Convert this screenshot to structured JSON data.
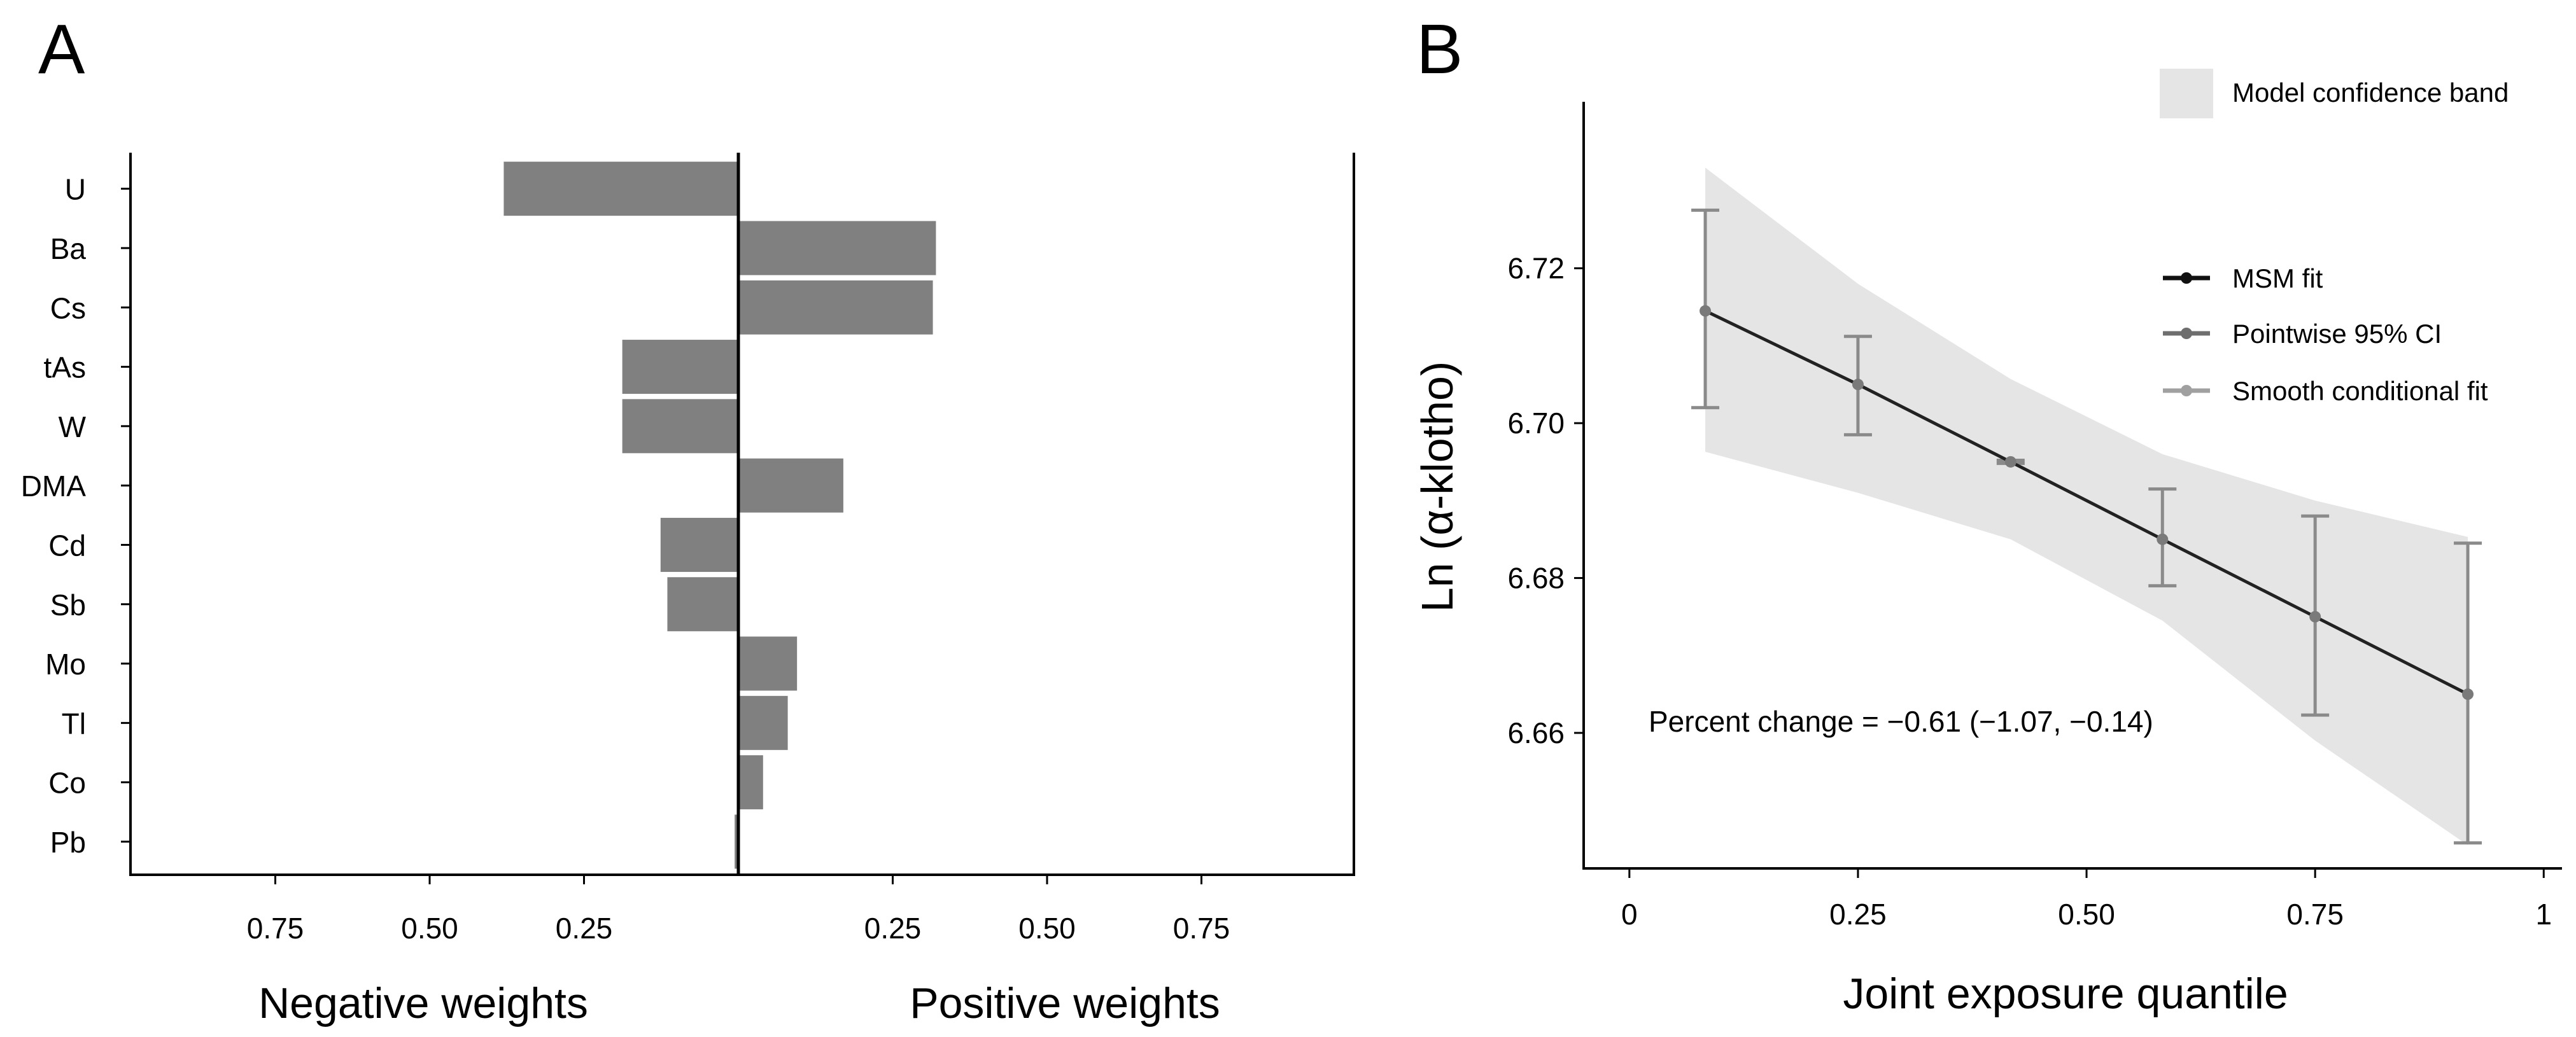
{
  "chart_data": [
    {
      "panel": "A",
      "type": "bar",
      "orientation": "horizontal",
      "panel_label": "A",
      "categories": [
        "U",
        "Ba",
        "Cs",
        "tAs",
        "W",
        "DMA",
        "Cd",
        "Sb",
        "Mo",
        "Tl",
        "Co",
        "Pb"
      ],
      "values": [
        -0.38,
        0.32,
        0.315,
        -0.188,
        -0.188,
        0.17,
        -0.126,
        -0.115,
        0.095,
        0.08,
        0.04,
        -0.006
      ],
      "xlim": [
        -1.0,
        1.0
      ],
      "xticks": [
        -0.75,
        -0.5,
        -0.25,
        0.25,
        0.5,
        0.75
      ],
      "xtick_labels": [
        "0.75",
        "0.50",
        "0.25",
        "0.25",
        "0.50",
        "0.75"
      ],
      "xlabel_negative": "Negative weights",
      "xlabel_positive": "Positive weights",
      "bar_color": "#808080"
    },
    {
      "panel": "B",
      "type": "line",
      "panel_label": "B",
      "x": [
        0.083,
        0.25,
        0.417,
        0.583,
        0.75,
        0.917
      ],
      "y": [
        6.7145,
        6.705,
        6.695,
        6.685,
        6.675,
        6.665
      ],
      "ci_lower": [
        6.702,
        6.6985,
        6.6948,
        6.679,
        6.6623,
        6.6458
      ],
      "ci_upper": [
        6.7275,
        6.7112,
        6.6952,
        6.6915,
        6.688,
        6.6845
      ],
      "band_x": [
        0.083,
        0.25,
        0.417,
        0.583,
        0.75,
        0.917
      ],
      "band_lower": [
        6.6963,
        6.691,
        6.685,
        6.6745,
        6.659,
        6.6455
      ],
      "band_upper": [
        6.733,
        6.718,
        6.7057,
        6.696,
        6.69,
        6.6853
      ],
      "xlim": [
        -0.05,
        1.02
      ],
      "ylim": [
        6.6425,
        6.7415
      ],
      "xticks": [
        0,
        0.25,
        0.5,
        0.75,
        1
      ],
      "xtick_labels": [
        "0",
        "0.25",
        "0.50",
        "0.75",
        "1"
      ],
      "yticks": [
        6.66,
        6.68,
        6.7,
        6.72
      ],
      "ytick_labels": [
        "6.66",
        "6.68",
        "6.70",
        "6.72"
      ],
      "xlabel": "Joint exposure quantile",
      "ylabel": "Ln (α-klotho)",
      "annotation": "Percent change = −0.61 (−1.07, −0.14)",
      "legend": [
        {
          "label": "Model confidence band",
          "kind": "band",
          "color": "#e5e5e5"
        },
        {
          "label": "MSM fit",
          "kind": "line",
          "color": "#111111"
        },
        {
          "label": "Pointwise 95% CI",
          "kind": "line",
          "color": "#6e6e6e"
        },
        {
          "label": "Smooth conditional fit",
          "kind": "line",
          "color": "#a0a0a0"
        }
      ],
      "line_color": "#222222",
      "ci_color": "#8a8a8a",
      "band_color": "#e5e5e5"
    }
  ]
}
